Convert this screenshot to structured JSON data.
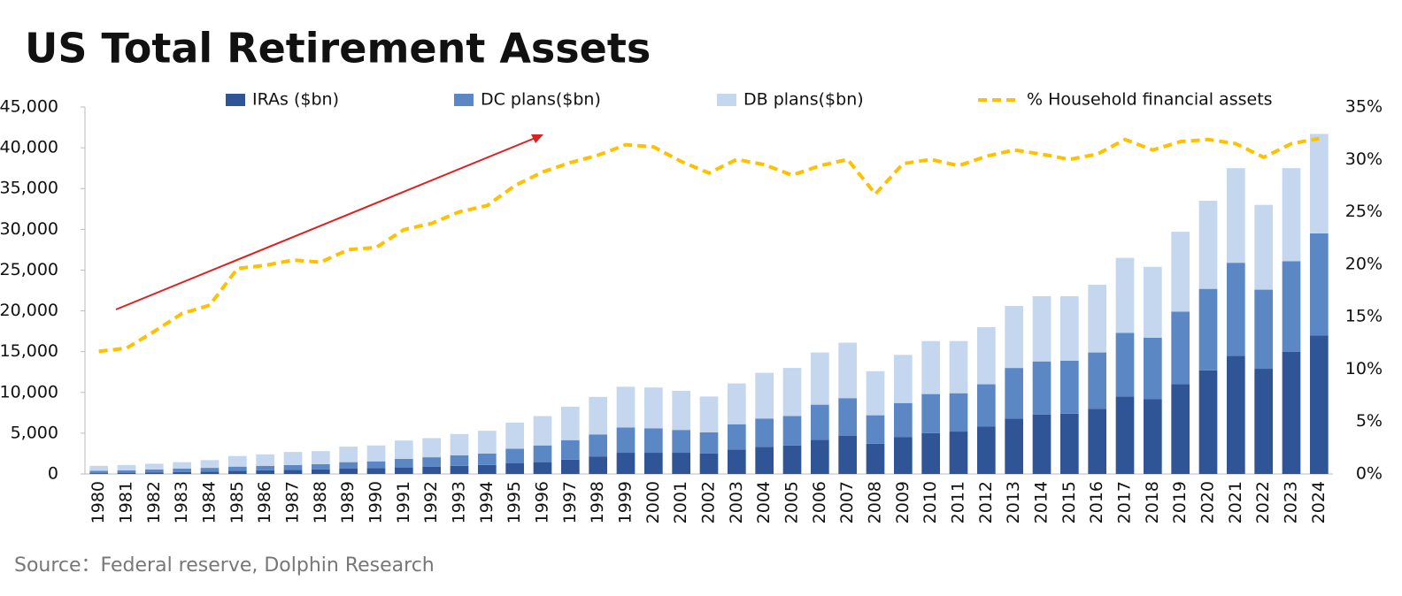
{
  "chart_data": {
    "type": "bar",
    "title": "US Total Retirement Assets",
    "source": "Source：Federal reserve, Dolphin Research",
    "categories": [
      "1980",
      "1981",
      "1982",
      "1983",
      "1984",
      "1985",
      "1986",
      "1987",
      "1988",
      "1989",
      "1990",
      "1991",
      "1992",
      "1993",
      "1994",
      "1995",
      "1996",
      "1997",
      "1998",
      "1999",
      "2000",
      "2001",
      "2002",
      "2003",
      "2004",
      "2005",
      "2006",
      "2007",
      "2008",
      "2009",
      "2010",
      "2011",
      "2012",
      "2013",
      "2014",
      "2015",
      "2016",
      "2017",
      "2018",
      "2019",
      "2020",
      "2021",
      "2022",
      "2023",
      "2024"
    ],
    "series": [
      {
        "name": "IRAs ($bn)",
        "color": "#2f5597",
        "stack": true,
        "values": [
          100,
          150,
          200,
          250,
          300,
          400,
          450,
          500,
          550,
          650,
          700,
          800,
          900,
          1000,
          1100,
          1300,
          1450,
          1750,
          2150,
          2600,
          2600,
          2600,
          2500,
          3000,
          3300,
          3500,
          4200,
          4700,
          3700,
          4500,
          5000,
          5200,
          5800,
          6800,
          7300,
          7400,
          8000,
          9500,
          9200,
          11000,
          12700,
          14500,
          12900,
          15000,
          17000
        ]
      },
      {
        "name": "DC plans($bn)",
        "color": "#5b87c5",
        "stack": true,
        "values": [
          300,
          300,
          350,
          400,
          450,
          500,
          550,
          600,
          650,
          800,
          850,
          1050,
          1150,
          1300,
          1400,
          1800,
          2050,
          2400,
          2700,
          3100,
          3000,
          2800,
          2600,
          3100,
          3500,
          3600,
          4300,
          4600,
          3500,
          4200,
          4800,
          4700,
          5200,
          6200,
          6500,
          6500,
          6900,
          7800,
          7500,
          8900,
          10000,
          11400,
          9700,
          11100,
          12500
        ]
      },
      {
        "name": "DB plans($bn)",
        "color": "#c5d6ef",
        "stack": true,
        "values": [
          600,
          650,
          700,
          800,
          950,
          1300,
          1400,
          1600,
          1600,
          1900,
          1950,
          2250,
          2350,
          2600,
          2800,
          3200,
          3600,
          4100,
          4600,
          5000,
          5000,
          4800,
          4400,
          5000,
          5600,
          5900,
          6400,
          6800,
          5400,
          5900,
          6500,
          6400,
          7000,
          7600,
          8000,
          7900,
          8300,
          9200,
          8700,
          9800,
          10800,
          11600,
          10400,
          11400,
          12200
        ]
      },
      {
        "name": "% Household financial assets",
        "color": "#ffc000",
        "type": "line",
        "dashed": true,
        "axis": "y2",
        "values": [
          11.7,
          12,
          13.6,
          15.3,
          16.1,
          19.6,
          19.9,
          20.4,
          20.2,
          21.4,
          21.6,
          23.3,
          23.9,
          25,
          25.6,
          27.5,
          28.8,
          29.7,
          30.4,
          31.4,
          31.2,
          29.8,
          28.7,
          30,
          29.5,
          28.5,
          29.4,
          30,
          26.7,
          29.6,
          30,
          29.4,
          30.3,
          30.9,
          30.5,
          30,
          30.5,
          31.9,
          30.9,
          31.7,
          31.9,
          31.5,
          30.2,
          31.5,
          32
        ]
      }
    ],
    "ylim": [
      0,
      45000
    ],
    "yticks": [
      0,
      {
        "value": 5000,
        "label": "5,000"
      },
      {
        "value": 10000,
        "label": "10,000"
      },
      {
        "value": 15000,
        "label": "15,000"
      },
      {
        "value": 20000,
        "label": "20,000"
      },
      {
        "value": 25000,
        "label": "25,000"
      },
      {
        "value": 30000,
        "label": "30,000"
      },
      {
        "value": 35000,
        "label": "35,000"
      },
      {
        "value": 40000,
        "label": "40,000"
      },
      {
        "value": 45000,
        "label": "45,000"
      }
    ],
    "y2lim": [
      0,
      35
    ],
    "y2ticks": [
      {
        "value": 0,
        "label": "0%"
      },
      {
        "value": 5,
        "label": "5%"
      },
      {
        "value": 10,
        "label": "10%"
      },
      {
        "value": 15,
        "label": "15%"
      },
      {
        "value": 20,
        "label": "20%"
      },
      {
        "value": 25,
        "label": "25%"
      },
      {
        "value": 30,
        "label": "30%"
      },
      {
        "value": 35,
        "label": "35%"
      }
    ],
    "legend": "top",
    "grid": false
  }
}
